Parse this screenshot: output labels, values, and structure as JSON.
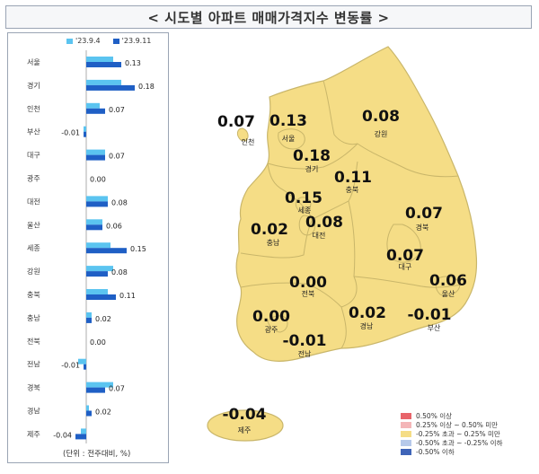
{
  "title": "< 시도별 아파트 매매가격지수 변동률 >",
  "legend_top": [
    {
      "label": "'23.9.4",
      "color": "#5bc4f0"
    },
    {
      "label": "'23.9.11",
      "color": "#1f5fc5"
    }
  ],
  "unit_note": "(단위 : 전주대비, %)",
  "chart_data": {
    "type": "bar",
    "orientation": "horizontal",
    "categories": [
      "서울",
      "경기",
      "인천",
      "부산",
      "대구",
      "광주",
      "대전",
      "울산",
      "세종",
      "강원",
      "충북",
      "충남",
      "전북",
      "전남",
      "경북",
      "경남",
      "제주"
    ],
    "series": [
      {
        "name": "'23.9.4",
        "color": "#5bc4f0",
        "values": [
          0.1,
          0.13,
          0.05,
          -0.01,
          0.07,
          0.0,
          0.08,
          0.06,
          0.09,
          0.1,
          0.08,
          0.02,
          0.0,
          -0.03,
          0.1,
          0.01,
          -0.02
        ]
      },
      {
        "name": "'23.9.11",
        "color": "#1f5fc5",
        "values": [
          0.13,
          0.18,
          0.07,
          -0.01,
          0.07,
          0.0,
          0.08,
          0.06,
          0.15,
          0.08,
          0.11,
          0.02,
          0.0,
          -0.01,
          0.07,
          0.02,
          -0.04
        ]
      }
    ],
    "value_labels": [
      "0.13",
      "0.18",
      "0.07",
      "-0.01",
      "0.07",
      "0.00",
      "0.08",
      "0.06",
      "0.15",
      "0.08",
      "0.11",
      "0.02",
      "0.00",
      "-0.01",
      "0.07",
      "0.02",
      "-0.04"
    ]
  },
  "map": {
    "regions": [
      {
        "name": "인천",
        "value": "0.07"
      },
      {
        "name": "서울",
        "value": "0.13"
      },
      {
        "name": "강원",
        "value": "0.08"
      },
      {
        "name": "경기",
        "value": "0.18"
      },
      {
        "name": "충북",
        "value": "0.11"
      },
      {
        "name": "세종",
        "value": "0.15"
      },
      {
        "name": "충남",
        "value": "0.02"
      },
      {
        "name": "대전",
        "value": "0.08"
      },
      {
        "name": "경북",
        "value": "0.07"
      },
      {
        "name": "대구",
        "value": "0.07"
      },
      {
        "name": "울산",
        "value": "0.06"
      },
      {
        "name": "전북",
        "value": "0.00"
      },
      {
        "name": "광주",
        "value": "0.00"
      },
      {
        "name": "전남",
        "value": "-0.01"
      },
      {
        "name": "경남",
        "value": "0.02"
      },
      {
        "name": "부산",
        "value": "-0.01"
      },
      {
        "name": "제주",
        "value": "-0.04"
      }
    ],
    "legend": [
      {
        "label": "0.50% 이상",
        "color": "#e8646a"
      },
      {
        "label": "0.25% 이상 ~ 0.50% 미만",
        "color": "#f4b6b8"
      },
      {
        "label": "-0.25% 초과 ~ 0.25% 미만",
        "color": "#f5dd86"
      },
      {
        "label": "-0.50% 초과 ~ -0.25% 이하",
        "color": "#b6c9ea"
      },
      {
        "label": "-0.50% 이하",
        "color": "#3f64b8"
      }
    ],
    "fill_color": "#f5dd86",
    "border_color": "#c9b66a"
  }
}
